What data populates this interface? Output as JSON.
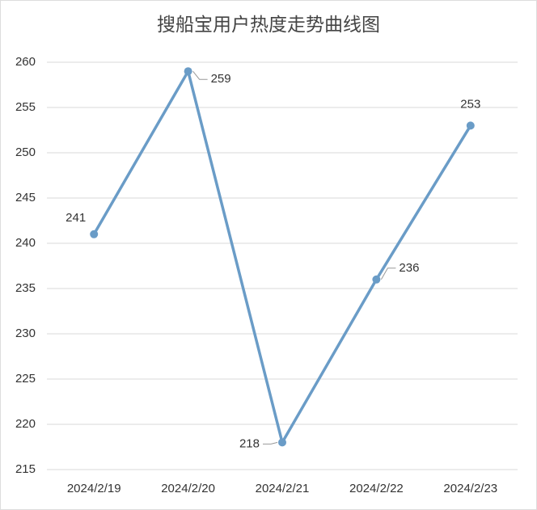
{
  "chart_data": {
    "type": "line",
    "title": "搜船宝用户热度走势曲线图",
    "categories": [
      "2024/2/19",
      "2024/2/20",
      "2024/2/21",
      "2024/2/22",
      "2024/2/23"
    ],
    "series": [
      {
        "name": "用户热度",
        "color": "#6a9cc7",
        "values": [
          241,
          259,
          218,
          236,
          253
        ]
      }
    ],
    "ylim": [
      215,
      260
    ],
    "yticks": [
      215,
      220,
      225,
      230,
      235,
      240,
      245,
      250,
      255,
      260
    ],
    "grid": true
  }
}
